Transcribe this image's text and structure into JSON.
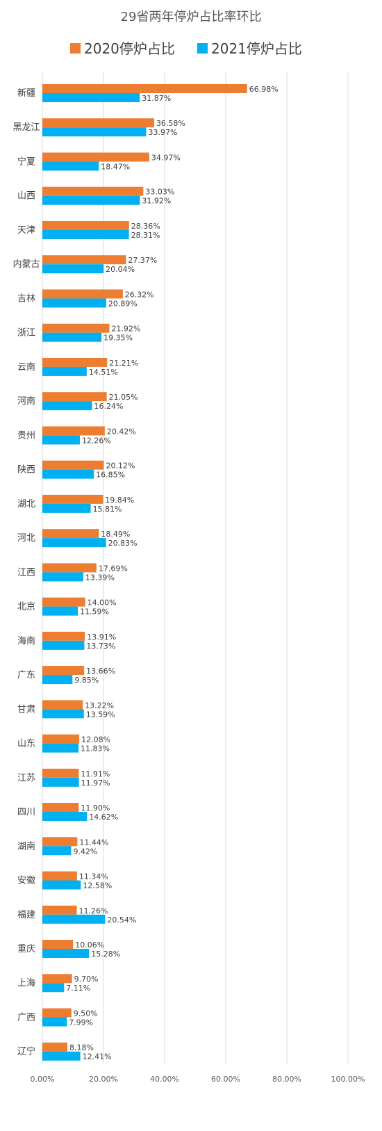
{
  "chart_data": {
    "type": "bar",
    "orientation": "horizontal",
    "title": "29省两年停炉占比率环比",
    "categories": [
      "新疆",
      "黑龙江",
      "宁夏",
      "山西",
      "天津",
      "内蒙古",
      "吉林",
      "浙江",
      "云南",
      "河南",
      "贵州",
      "陕西",
      "湖北",
      "河北",
      "江西",
      "北京",
      "海南",
      "广东",
      "甘肃",
      "山东",
      "江苏",
      "四川",
      "湖南",
      "安徽",
      "福建",
      "重庆",
      "上海",
      "广西",
      "辽宁"
    ],
    "series": [
      {
        "name": "2020停炉占比",
        "color": "#ed7d31",
        "values": [
          66.98,
          36.58,
          34.97,
          33.03,
          28.36,
          27.37,
          26.32,
          21.92,
          21.21,
          21.05,
          20.42,
          20.12,
          19.84,
          18.49,
          17.69,
          14.0,
          13.91,
          13.66,
          13.22,
          12.08,
          11.91,
          11.9,
          11.44,
          11.34,
          11.26,
          10.06,
          9.7,
          9.5,
          8.18
        ],
        "labels": [
          "66.98%",
          "36.58%",
          "34.97%",
          "33.03%",
          "28.36%",
          "27.37%",
          "26.32%",
          "21.92%",
          "21.21%",
          "21.05%",
          "20.42%",
          "20.12%",
          "19.84%",
          "18.49%",
          "17.69%",
          "14.00%",
          "13.91%",
          "13.66%",
          "13.22%",
          "12.08%",
          "11.91%",
          "11.90%",
          "11.44%",
          "11.34%",
          "11.26%",
          "10.06%",
          "9.70%",
          "9.50%",
          "8.18%"
        ]
      },
      {
        "name": "2021停炉占比",
        "color": "#00b0f0",
        "values": [
          31.87,
          33.97,
          18.47,
          31.92,
          28.31,
          20.04,
          20.89,
          19.35,
          14.51,
          16.24,
          12.26,
          16.85,
          15.81,
          20.83,
          13.39,
          11.59,
          13.73,
          9.85,
          13.59,
          11.83,
          11.97,
          14.62,
          9.42,
          12.58,
          20.54,
          15.28,
          7.11,
          7.99,
          12.41
        ],
        "labels": [
          "31.87%",
          "33.97%",
          "18.47%",
          "31.92%",
          "28.31%",
          "20.04%",
          "20.89%",
          "19.35%",
          "14.51%",
          "16.24%",
          "12.26%",
          "16.85%",
          "15.81%",
          "20.83%",
          "13.39%",
          "11.59%",
          "13.73%",
          "9.85%",
          "13.59%",
          "11.83%",
          "11.97%",
          "14.62%",
          "9.42%",
          "12.58%",
          "20.54%",
          "15.28%",
          "7.11%",
          "7.99%",
          "12.41%"
        ]
      }
    ],
    "xlim": [
      0,
      100
    ],
    "x_ticks": [
      0,
      20,
      40,
      60,
      80,
      100
    ],
    "x_tick_labels": [
      "0.00%",
      "20.00%",
      "40.00%",
      "60.00%",
      "80.00%",
      "100.00%"
    ],
    "grid": "vertical",
    "legend": "top"
  }
}
